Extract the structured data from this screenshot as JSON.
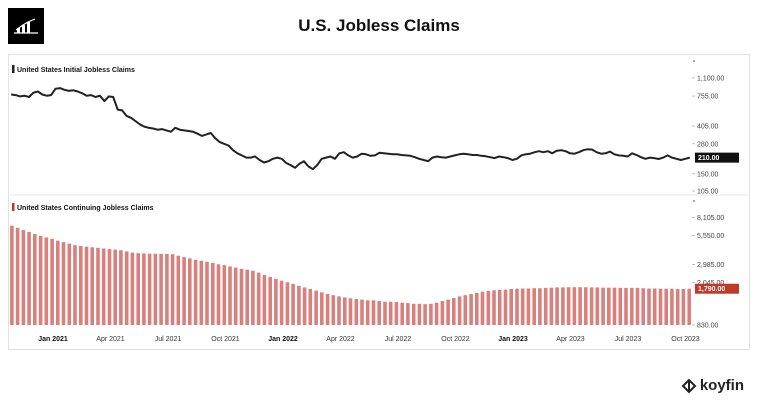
{
  "title": "U.S. Jobless Claims",
  "brand": "koyfin",
  "colors": {
    "initial_line": "#222222",
    "continuing_bar": "#d9807c",
    "continuing_marker": "#c0392b",
    "initial_marker": "#111111"
  },
  "chart_data": [
    {
      "type": "line",
      "title": "United States Initial Jobless Claims",
      "y_scale": "log",
      "ylim": [
        105,
        1500
      ],
      "yticks": [
        "1,100.00",
        "755.00",
        "405.00",
        "280.00",
        "150.00",
        "105.00"
      ],
      "last_value_label": "210.00",
      "x_labels": [
        "Jan 2021",
        "Apr 2021",
        "Jul 2021",
        "Oct 2021",
        "Jan 2022",
        "Apr 2022",
        "Jul 2022",
        "Oct 2022",
        "Jan 2023",
        "Apr 2023",
        "Jul 2023",
        "Oct 2023"
      ],
      "values": [
        780,
        770,
        750,
        760,
        740,
        810,
        830,
        780,
        760,
        770,
        880,
        890,
        860,
        840,
        850,
        830,
        800,
        760,
        770,
        740,
        760,
        680,
        750,
        740,
        570,
        560,
        500,
        480,
        450,
        420,
        400,
        390,
        385,
        375,
        380,
        370,
        360,
        390,
        375,
        370,
        365,
        360,
        345,
        330,
        340,
        350,
        315,
        290,
        280,
        270,
        245,
        230,
        220,
        210,
        210,
        215,
        200,
        190,
        195,
        205,
        210,
        205,
        188,
        180,
        170,
        185,
        195,
        175,
        165,
        180,
        205,
        210,
        215,
        205,
        230,
        235,
        220,
        210,
        215,
        228,
        225,
        218,
        220,
        232,
        230,
        228,
        225,
        225,
        222,
        220,
        218,
        212,
        205,
        200,
        195,
        210,
        215,
        212,
        210,
        215,
        220,
        225,
        228,
        225,
        222,
        222,
        218,
        216,
        212,
        208,
        215,
        212,
        208,
        200,
        205,
        220,
        225,
        228,
        235,
        240,
        235,
        240,
        230,
        242,
        245,
        240,
        230,
        228,
        235,
        245,
        250,
        248,
        235,
        228,
        230,
        238,
        225,
        220,
        218,
        215,
        230,
        222,
        212,
        205,
        210,
        208,
        204,
        210,
        220,
        210,
        205,
        200,
        205,
        210
      ]
    },
    {
      "type": "bar",
      "title": "United States Continuing Jobless Claims",
      "y_scale": "log",
      "ylim": [
        830,
        11000
      ],
      "yticks": [
        "8,105.00",
        "5,550.00",
        "2,985.00",
        "2,045.00",
        "1,790.00",
        "830.00"
      ],
      "last_value_label": "1,790.00",
      "x_labels": [
        "Jan 2021",
        "Apr 2021",
        "Jul 2021",
        "Oct 2021",
        "Jan 2022",
        "Apr 2022",
        "Jul 2022",
        "Oct 2022",
        "Jan 2023",
        "Apr 2023",
        "Jul 2023",
        "Oct 2023"
      ],
      "values": [
        6800,
        6500,
        6200,
        5950,
        5700,
        5480,
        5300,
        5150,
        4950,
        4800,
        4650,
        4500,
        4420,
        4360,
        4300,
        4250,
        4200,
        4150,
        4100,
        4050,
        3950,
        3850,
        3800,
        3780,
        3760,
        3760,
        3750,
        3740,
        3720,
        3600,
        3500,
        3400,
        3300,
        3240,
        3170,
        3100,
        3000,
        2950,
        2870,
        2800,
        2730,
        2680,
        2620,
        2520,
        2400,
        2300,
        2210,
        2120,
        2050,
        1980,
        1900,
        1840,
        1780,
        1720,
        1660,
        1600,
        1560,
        1520,
        1490,
        1460,
        1440,
        1420,
        1400,
        1400,
        1380,
        1360,
        1360,
        1350,
        1330,
        1320,
        1300,
        1300,
        1290,
        1300,
        1330,
        1380,
        1420,
        1470,
        1520,
        1560,
        1600,
        1640,
        1680,
        1710,
        1730,
        1750,
        1760,
        1780,
        1790,
        1800,
        1800,
        1810,
        1810,
        1820,
        1830,
        1840,
        1840,
        1850,
        1850,
        1850,
        1850,
        1840,
        1840,
        1830,
        1830,
        1830,
        1820,
        1820,
        1820,
        1820,
        1810,
        1800,
        1800,
        1790,
        1790,
        1790,
        1780,
        1780,
        1790
      ]
    }
  ]
}
